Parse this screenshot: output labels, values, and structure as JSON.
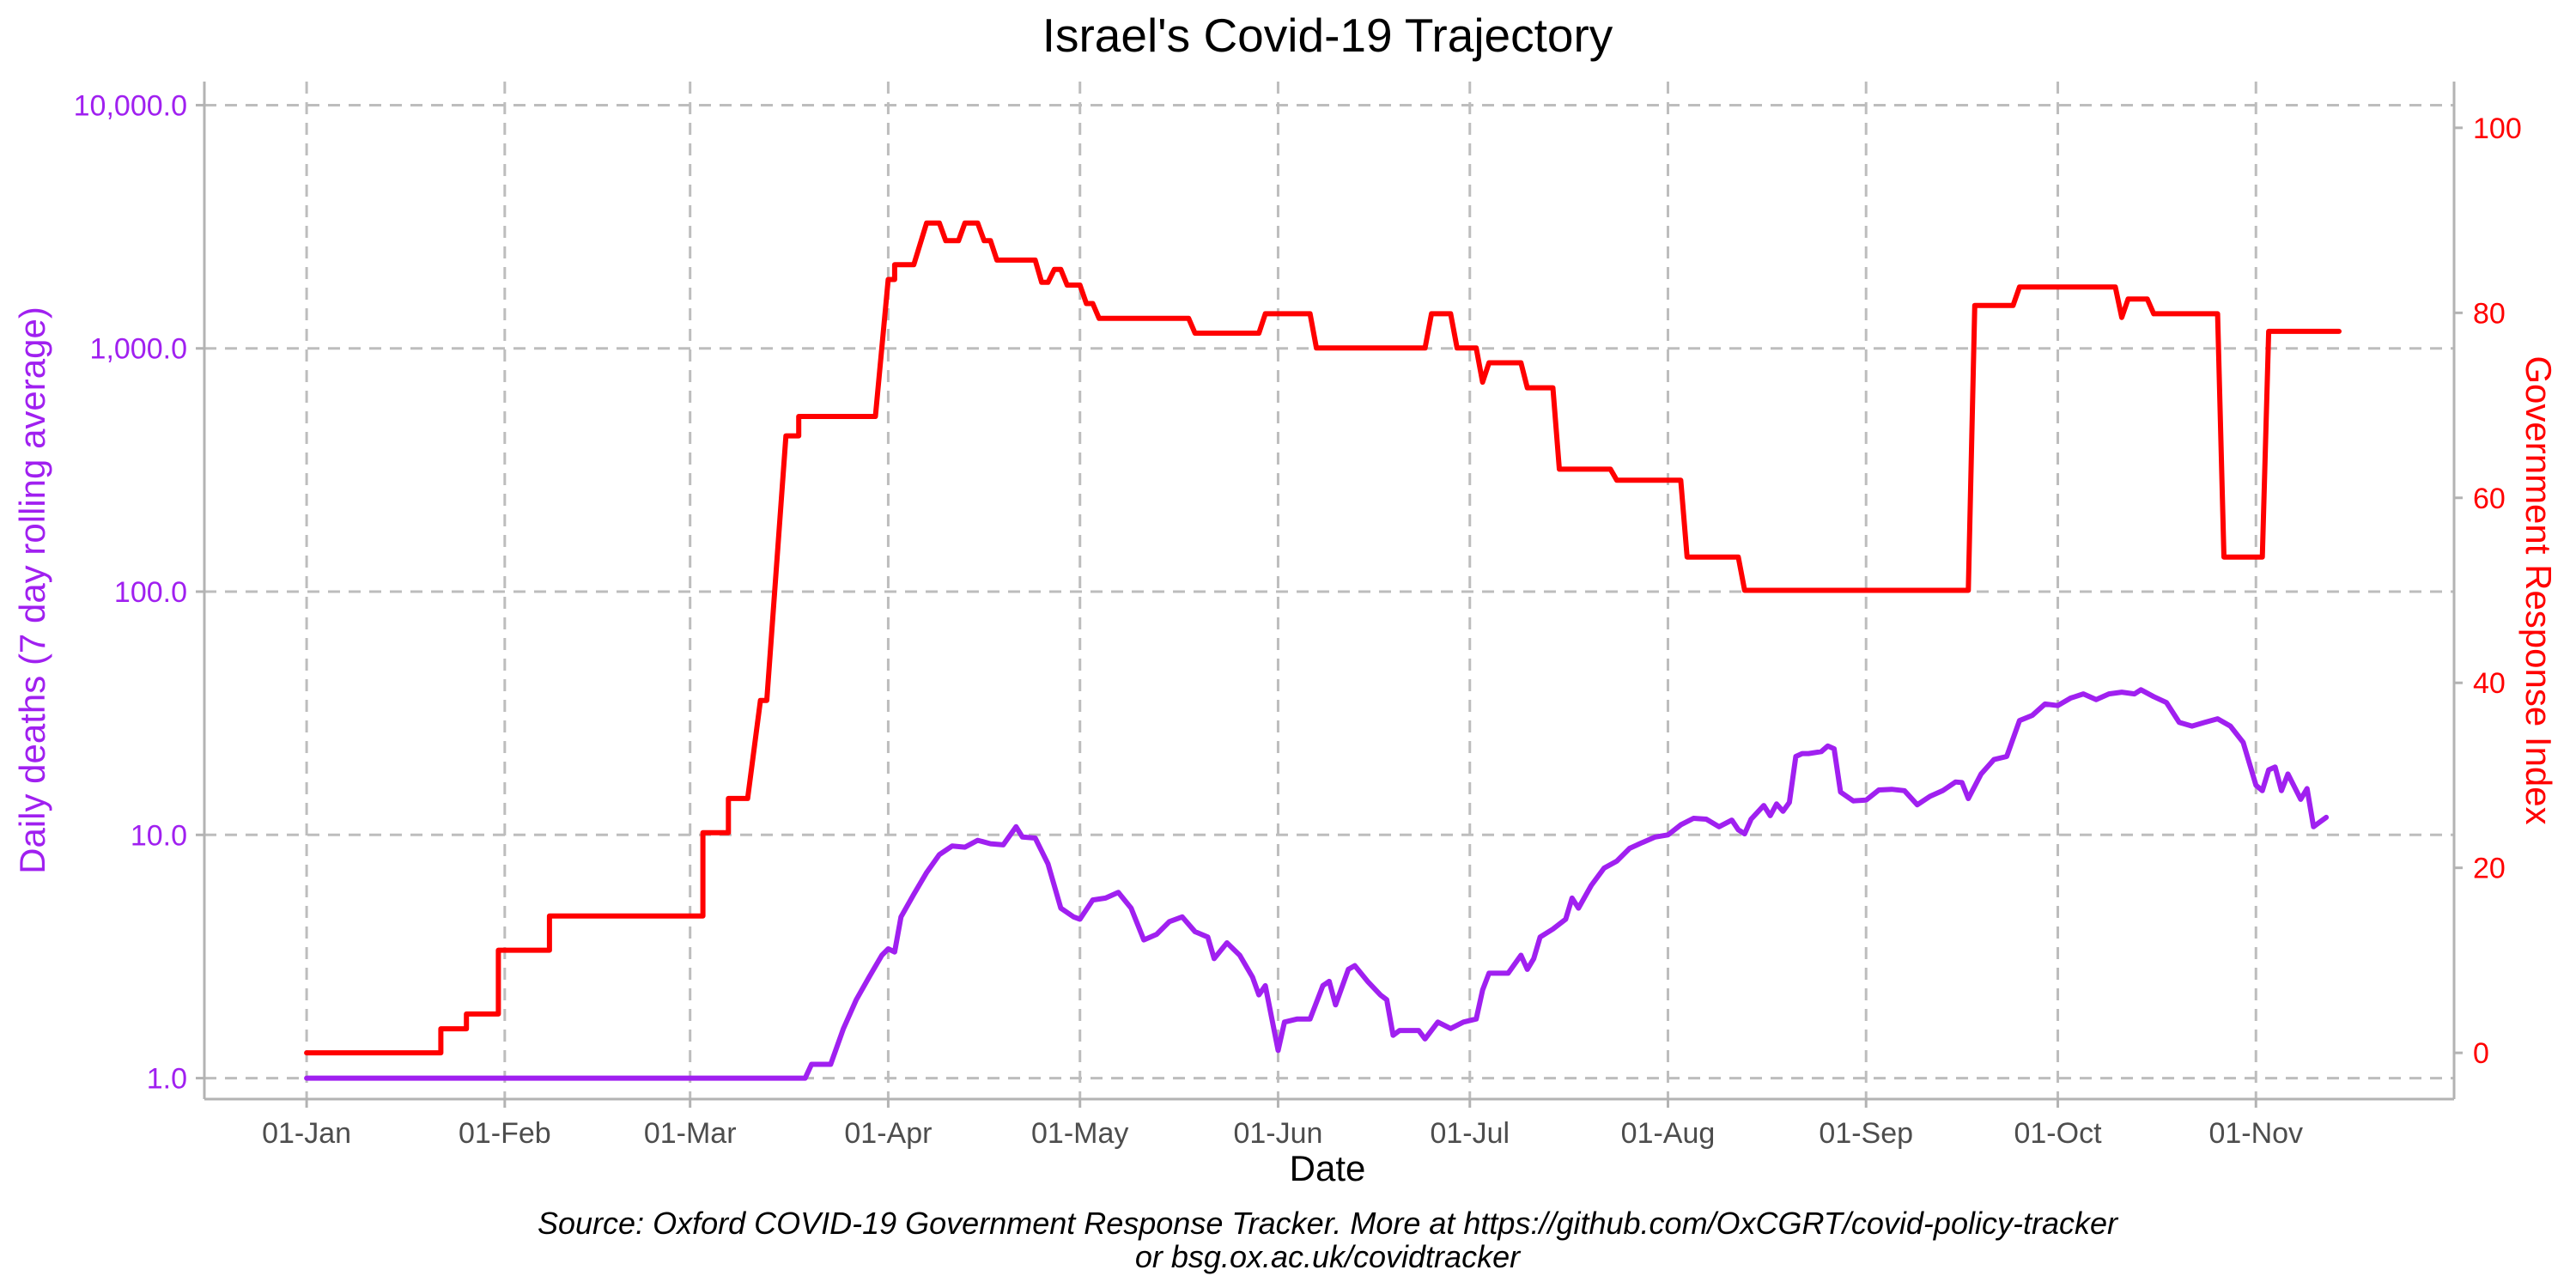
{
  "chart_data": {
    "type": "line",
    "title": "Israel's Covid-19 Trajectory",
    "xlabel": "Date",
    "ylabel_left": "Daily deaths (7 day rolling average)",
    "ylabel_right": "Government Response Index",
    "caption_line1": "Source: Oxford COVID-19 Government Response Tracker. More at https://github.com/OxCGRT/covid-policy-tracker",
    "caption_line2": "or bsg.ox.ac.uk/covidtracker",
    "x_ticks": [
      {
        "day": 0,
        "label": "01-Jan"
      },
      {
        "day": 31,
        "label": "01-Feb"
      },
      {
        "day": 60,
        "label": "01-Mar"
      },
      {
        "day": 91,
        "label": "01-Apr"
      },
      {
        "day": 121,
        "label": "01-May"
      },
      {
        "day": 152,
        "label": "01-Jun"
      },
      {
        "day": 182,
        "label": "01-Jul"
      },
      {
        "day": 213,
        "label": "01-Aug"
      },
      {
        "day": 244,
        "label": "01-Sep"
      },
      {
        "day": 274,
        "label": "01-Oct"
      },
      {
        "day": 305,
        "label": "01-Nov"
      }
    ],
    "x_range_day": [
      -16,
      336
    ],
    "y_left": {
      "scale": "log",
      "range": [
        0.82,
        12500
      ],
      "ticks": [
        {
          "value": 1,
          "label": "1.0"
        },
        {
          "value": 10,
          "label": "10.0"
        },
        {
          "value": 100,
          "label": "100.0"
        },
        {
          "value": 1000,
          "label": "1,000.0"
        },
        {
          "value": 10000,
          "label": "10,000.0"
        }
      ],
      "color": "#a020f0"
    },
    "y_right": {
      "scale": "linear",
      "range": [
        -5,
        105
      ],
      "ticks": [
        {
          "value": 0,
          "label": "0"
        },
        {
          "value": 20,
          "label": "20"
        },
        {
          "value": 40,
          "label": "40"
        },
        {
          "value": 60,
          "label": "60"
        },
        {
          "value": 80,
          "label": "80"
        },
        {
          "value": 100,
          "label": "100"
        }
      ],
      "color": "#ff0000"
    },
    "grid": true,
    "series": [
      {
        "name": "Government Response Index",
        "axis": "right",
        "color": "#ff0000",
        "step": true,
        "points": [
          [
            "2020-01-01",
            0
          ],
          [
            "2020-01-22",
            0
          ],
          [
            "2020-01-22",
            2.6
          ],
          [
            "2020-01-26",
            2.6
          ],
          [
            "2020-01-26",
            4.2
          ],
          [
            "2020-01-31",
            4.2
          ],
          [
            "2020-01-31",
            11.1
          ],
          [
            "2020-02-08",
            11.1
          ],
          [
            "2020-02-08",
            14.8
          ],
          [
            "2020-03-03",
            14.8
          ],
          [
            "2020-03-03",
            23.8
          ],
          [
            "2020-03-07",
            23.8
          ],
          [
            "2020-03-07",
            27.5
          ],
          [
            "2020-03-10",
            27.5
          ],
          [
            "2020-03-12",
            38.1
          ],
          [
            "2020-03-13",
            38.1
          ],
          [
            "2020-03-16",
            66.7
          ],
          [
            "2020-03-18",
            66.7
          ],
          [
            "2020-03-18",
            68.8
          ],
          [
            "2020-03-30",
            68.8
          ],
          [
            "2020-04-01",
            83.6
          ],
          [
            "2020-04-02",
            83.6
          ],
          [
            "2020-04-02",
            85.2
          ],
          [
            "2020-04-05",
            85.2
          ],
          [
            "2020-04-07",
            89.7
          ],
          [
            "2020-04-09",
            89.7
          ],
          [
            "2020-04-10",
            87.8
          ],
          [
            "2020-04-12",
            87.8
          ],
          [
            "2020-04-13",
            89.7
          ],
          [
            "2020-04-15",
            89.7
          ],
          [
            "2020-04-16",
            87.8
          ],
          [
            "2020-04-17",
            87.8
          ],
          [
            "2020-04-18",
            85.7
          ],
          [
            "2020-04-24",
            85.7
          ],
          [
            "2020-04-25",
            83.3
          ],
          [
            "2020-04-26",
            83.3
          ],
          [
            "2020-04-27",
            84.7
          ],
          [
            "2020-04-28",
            84.7
          ],
          [
            "2020-04-29",
            83.0
          ],
          [
            "2020-05-01",
            83.0
          ],
          [
            "2020-05-02",
            81.0
          ],
          [
            "2020-05-03",
            81.0
          ],
          [
            "2020-05-04",
            79.4
          ],
          [
            "2020-05-18",
            79.4
          ],
          [
            "2020-05-19",
            77.8
          ],
          [
            "2020-05-29",
            77.8
          ],
          [
            "2020-05-30",
            79.9
          ],
          [
            "2020-06-06",
            79.9
          ],
          [
            "2020-06-07",
            76.2
          ],
          [
            "2020-06-24",
            76.2
          ],
          [
            "2020-06-25",
            79.9
          ],
          [
            "2020-06-28",
            79.9
          ],
          [
            "2020-06-29",
            76.2
          ],
          [
            "2020-07-02",
            76.2
          ],
          [
            "2020-07-03",
            72.5
          ],
          [
            "2020-07-04",
            74.6
          ],
          [
            "2020-07-09",
            74.6
          ],
          [
            "2020-07-10",
            71.9
          ],
          [
            "2020-07-14",
            71.9
          ],
          [
            "2020-07-15",
            63.1
          ],
          [
            "2020-07-23",
            63.1
          ],
          [
            "2020-07-24",
            61.9
          ],
          [
            "2020-08-03",
            61.9
          ],
          [
            "2020-08-04",
            53.6
          ],
          [
            "2020-08-12",
            53.6
          ],
          [
            "2020-08-13",
            50.0
          ],
          [
            "2020-09-17",
            50.0
          ],
          [
            "2020-09-18",
            80.8
          ],
          [
            "2020-09-24",
            80.8
          ],
          [
            "2020-09-25",
            82.8
          ],
          [
            "2020-10-10",
            82.8
          ],
          [
            "2020-10-11",
            79.5
          ],
          [
            "2020-10-12",
            81.5
          ],
          [
            "2020-10-15",
            81.5
          ],
          [
            "2020-10-16",
            79.9
          ],
          [
            "2020-10-26",
            79.9
          ],
          [
            "2020-10-27",
            53.6
          ],
          [
            "2020-11-02",
            53.6
          ],
          [
            "2020-11-03",
            78.0
          ],
          [
            "2020-11-14",
            78.0
          ]
        ]
      },
      {
        "name": "Daily deaths (7 day rolling average)",
        "axis": "left",
        "color": "#a020f0",
        "step": false,
        "points": [
          [
            "2020-01-01",
            1.0
          ],
          [
            "2020-03-19",
            1.0
          ],
          [
            "2020-03-20",
            1.14
          ],
          [
            "2020-03-23",
            1.14
          ],
          [
            "2020-03-25",
            1.6
          ],
          [
            "2020-03-27",
            2.1
          ],
          [
            "2020-03-29",
            2.6
          ],
          [
            "2020-03-31",
            3.2
          ],
          [
            "2020-04-01",
            3.4
          ],
          [
            "2020-04-02",
            3.3
          ],
          [
            "2020-04-03",
            4.6
          ],
          [
            "2020-04-05",
            5.7
          ],
          [
            "2020-04-07",
            7.0
          ],
          [
            "2020-04-09",
            8.3
          ],
          [
            "2020-04-11",
            9.0
          ],
          [
            "2020-04-13",
            8.9
          ],
          [
            "2020-04-15",
            9.5
          ],
          [
            "2020-04-17",
            9.2
          ],
          [
            "2020-04-19",
            9.1
          ],
          [
            "2020-04-21",
            10.8
          ],
          [
            "2020-04-22",
            9.8
          ],
          [
            "2020-04-24",
            9.7
          ],
          [
            "2020-04-26",
            7.6
          ],
          [
            "2020-04-28",
            5.0
          ],
          [
            "2020-04-30",
            4.6
          ],
          [
            "2020-05-01",
            4.5
          ],
          [
            "2020-05-03",
            5.4
          ],
          [
            "2020-05-05",
            5.5
          ],
          [
            "2020-05-07",
            5.8
          ],
          [
            "2020-05-09",
            5.0
          ],
          [
            "2020-05-11",
            3.7
          ],
          [
            "2020-05-13",
            3.9
          ],
          [
            "2020-05-15",
            4.4
          ],
          [
            "2020-05-17",
            4.6
          ],
          [
            "2020-05-19",
            4.0
          ],
          [
            "2020-05-21",
            3.8
          ],
          [
            "2020-05-22",
            3.1
          ],
          [
            "2020-05-24",
            3.6
          ],
          [
            "2020-05-26",
            3.2
          ],
          [
            "2020-05-28",
            2.6
          ],
          [
            "2020-05-29",
            2.2
          ],
          [
            "2020-05-30",
            2.4
          ],
          [
            "2020-06-01",
            1.3
          ],
          [
            "2020-06-02",
            1.7
          ],
          [
            "2020-06-04",
            1.75
          ],
          [
            "2020-06-06",
            1.75
          ],
          [
            "2020-06-08",
            2.4
          ],
          [
            "2020-06-09",
            2.5
          ],
          [
            "2020-06-10",
            2.0
          ],
          [
            "2020-06-12",
            2.8
          ],
          [
            "2020-06-13",
            2.9
          ],
          [
            "2020-06-15",
            2.5
          ],
          [
            "2020-06-17",
            2.2
          ],
          [
            "2020-06-18",
            2.1
          ],
          [
            "2020-06-19",
            1.5
          ],
          [
            "2020-06-20",
            1.57
          ],
          [
            "2020-06-23",
            1.57
          ],
          [
            "2020-06-24",
            1.45
          ],
          [
            "2020-06-26",
            1.7
          ],
          [
            "2020-06-28",
            1.6
          ],
          [
            "2020-06-30",
            1.7
          ],
          [
            "2020-07-02",
            1.75
          ],
          [
            "2020-07-03",
            2.3
          ],
          [
            "2020-07-04",
            2.7
          ],
          [
            "2020-07-07",
            2.7
          ],
          [
            "2020-07-09",
            3.2
          ],
          [
            "2020-07-10",
            2.8
          ],
          [
            "2020-07-11",
            3.1
          ],
          [
            "2020-07-12",
            3.8
          ],
          [
            "2020-07-14",
            4.1
          ],
          [
            "2020-07-16",
            4.5
          ],
          [
            "2020-07-17",
            5.5
          ],
          [
            "2020-07-18",
            5.0
          ],
          [
            "2020-07-20",
            6.2
          ],
          [
            "2020-07-22",
            7.3
          ],
          [
            "2020-07-24",
            7.8
          ],
          [
            "2020-07-26",
            8.8
          ],
          [
            "2020-07-28",
            9.3
          ],
          [
            "2020-07-30",
            9.8
          ],
          [
            "2020-08-01",
            10.0
          ],
          [
            "2020-08-03",
            11.0
          ],
          [
            "2020-08-05",
            11.7
          ],
          [
            "2020-08-07",
            11.6
          ],
          [
            "2020-08-09",
            10.8
          ],
          [
            "2020-08-11",
            11.5
          ],
          [
            "2020-08-12",
            10.5
          ],
          [
            "2020-08-13",
            10.1
          ],
          [
            "2020-08-14",
            11.6
          ],
          [
            "2020-08-16",
            13.2
          ],
          [
            "2020-08-17",
            12.0
          ],
          [
            "2020-08-18",
            13.4
          ],
          [
            "2020-08-19",
            12.5
          ],
          [
            "2020-08-20",
            13.6
          ],
          [
            "2020-08-21",
            21.0
          ],
          [
            "2020-08-22",
            21.6
          ],
          [
            "2020-08-23",
            21.6
          ],
          [
            "2020-08-25",
            22.0
          ],
          [
            "2020-08-26",
            23.2
          ],
          [
            "2020-08-27",
            22.6
          ],
          [
            "2020-08-28",
            15.0
          ],
          [
            "2020-08-30",
            13.8
          ],
          [
            "2020-09-01",
            13.9
          ],
          [
            "2020-09-03",
            15.3
          ],
          [
            "2020-09-05",
            15.4
          ],
          [
            "2020-09-07",
            15.2
          ],
          [
            "2020-09-09",
            13.3
          ],
          [
            "2020-09-11",
            14.4
          ],
          [
            "2020-09-13",
            15.2
          ],
          [
            "2020-09-15",
            16.5
          ],
          [
            "2020-09-16",
            16.4
          ],
          [
            "2020-09-17",
            14.1
          ],
          [
            "2020-09-19",
            17.8
          ],
          [
            "2020-09-21",
            20.4
          ],
          [
            "2020-09-23",
            21.0
          ],
          [
            "2020-09-25",
            29.5
          ],
          [
            "2020-09-27",
            31.0
          ],
          [
            "2020-09-29",
            34.5
          ],
          [
            "2020-10-01",
            34.0
          ],
          [
            "2020-10-03",
            36.5
          ],
          [
            "2020-10-05",
            38.0
          ],
          [
            "2020-10-07",
            36.0
          ],
          [
            "2020-10-09",
            38.0
          ],
          [
            "2020-10-11",
            38.6
          ],
          [
            "2020-10-13",
            38.0
          ],
          [
            "2020-10-14",
            39.5
          ],
          [
            "2020-10-16",
            37.0
          ],
          [
            "2020-10-18",
            35.0
          ],
          [
            "2020-10-20",
            29.0
          ],
          [
            "2020-10-22",
            28.0
          ],
          [
            "2020-10-24",
            29.0
          ],
          [
            "2020-10-26",
            30.0
          ],
          [
            "2020-10-28",
            28.0
          ],
          [
            "2020-10-30",
            24.0
          ],
          [
            "2020-11-01",
            16.0
          ],
          [
            "2020-11-02",
            15.2
          ],
          [
            "2020-11-03",
            18.5
          ],
          [
            "2020-11-04",
            19.0
          ],
          [
            "2020-11-05",
            15.2
          ],
          [
            "2020-11-06",
            17.8
          ],
          [
            "2020-11-08",
            14.0
          ],
          [
            "2020-11-09",
            15.5
          ],
          [
            "2020-11-10",
            10.8
          ],
          [
            "2020-11-11",
            11.3
          ],
          [
            "2020-11-12",
            11.8
          ]
        ]
      }
    ]
  }
}
